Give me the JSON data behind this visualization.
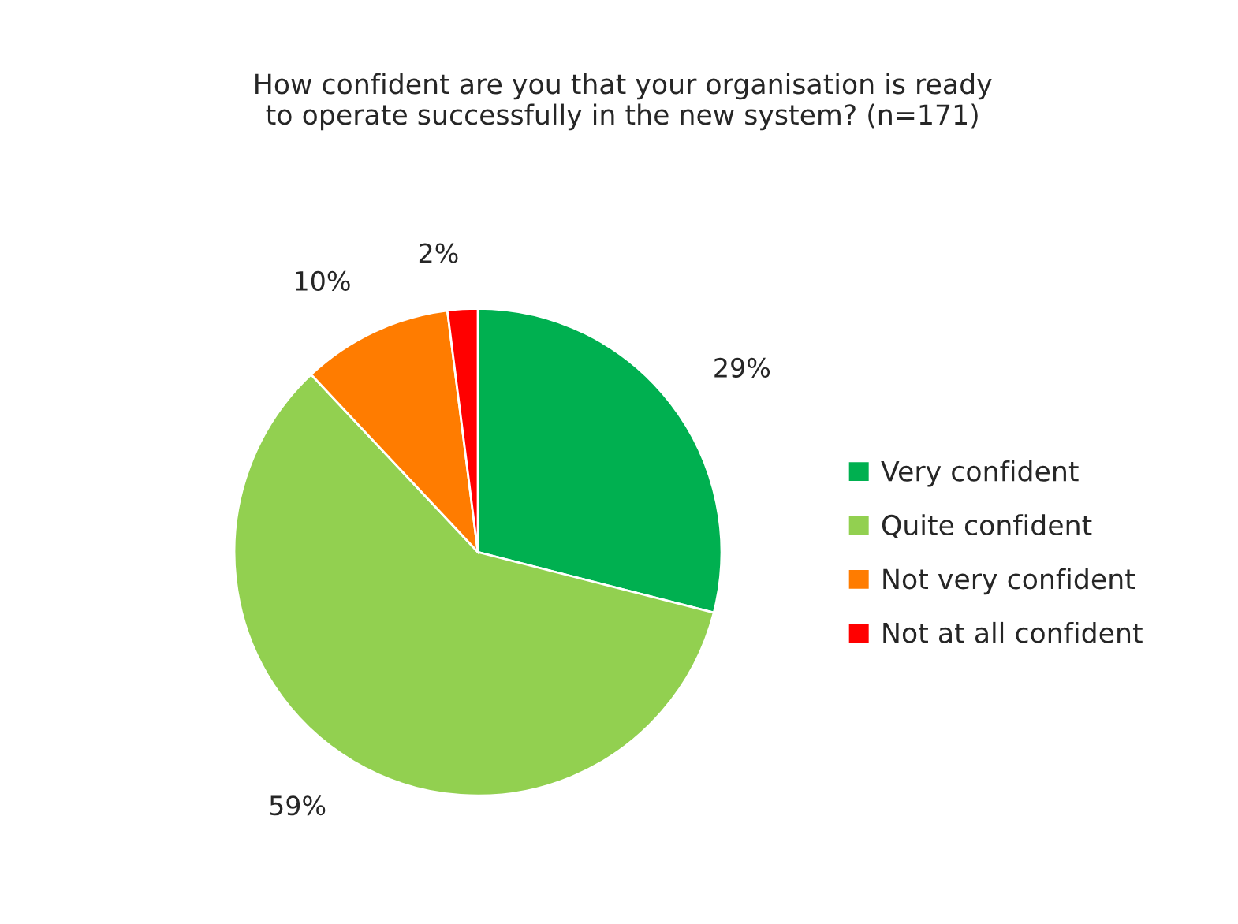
{
  "chart_data": {
    "type": "pie",
    "title": "How confident are you that your organisation is ready\nto operate successfully in the new system? (n=171)",
    "categories": [
      "Very confident",
      "Quite confident",
      "Not very confident",
      "Not at all confident"
    ],
    "values": [
      29,
      59,
      10,
      2
    ],
    "colors": [
      "#00b050",
      "#92d050",
      "#ff7c00",
      "#ff0000"
    ],
    "value_labels": [
      "29%",
      "59%",
      "10%",
      "2%"
    ],
    "legend": "right"
  }
}
